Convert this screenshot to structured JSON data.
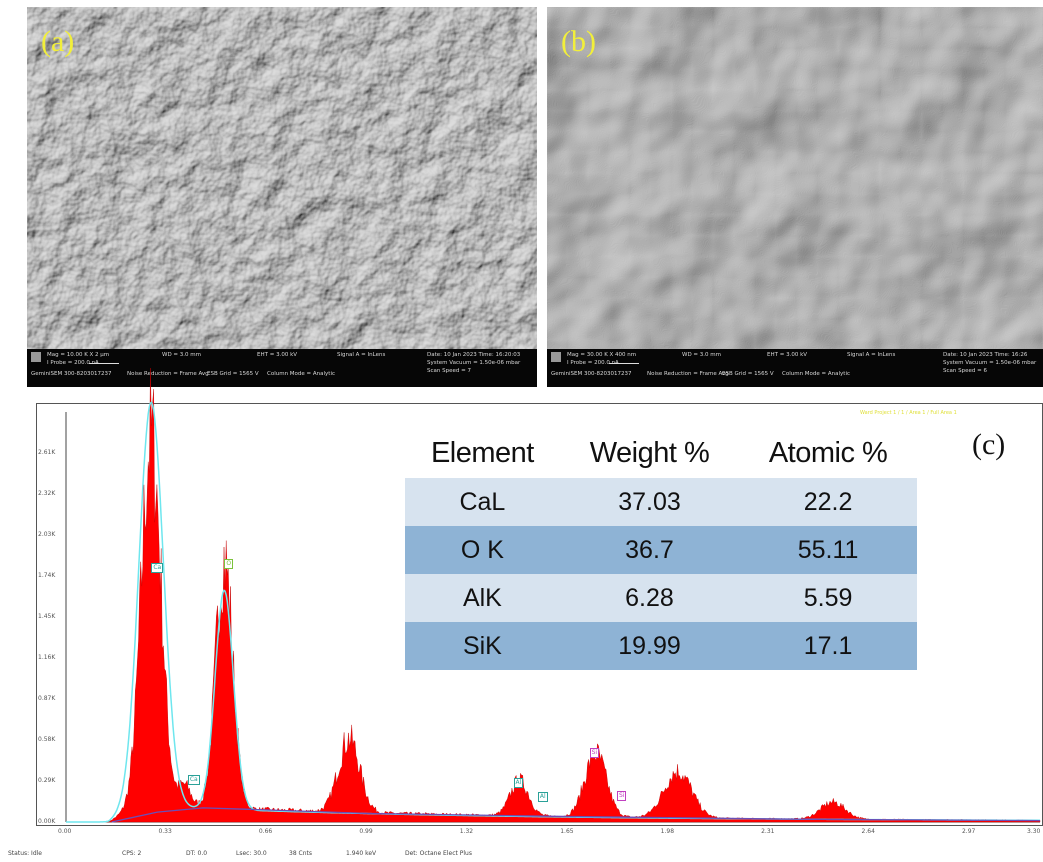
{
  "panel_a": {
    "label": "(a)",
    "info": {
      "col1_row1": "Mag = 10.00 K X",
      "col1_row2": "I Probe = 200.0 nA",
      "col1_row3": "GeminiSEM 300-8203017237",
      "scale": "2 µm",
      "col2_row1": "WD = 3.0 mm",
      "col2_row3": "Noise Reduction = Frame Avg",
      "col3_row1": "EHT = 3.00 kV",
      "col3_row3": "ESB Grid = 1565 V",
      "col4_row1": "Signal A = InLens",
      "col4_row3": "Column Mode = Analytic",
      "col5_row1": "Date: 10 Jan 2023  Time: 16:20:03",
      "col5_row2": "System Vacuum = 1.50e-06 mbar",
      "col5_row3": "Scan Speed = 7"
    }
  },
  "panel_b": {
    "label": "(b)",
    "info": {
      "col1_row1": "Mag = 30.00 K X",
      "col1_row2": "I Probe = 200.0 nA",
      "col1_row3": "GeminiSEM 300-8203017237",
      "scale": "400 nm",
      "col2_row1": "WD = 3.0 mm",
      "col2_row3": "Noise Reduction = Frame Avg",
      "col3_row1": "EHT = 3.00 kV",
      "col3_row3": "ESB Grid = 1565 V",
      "col4_row1": "Signal A = InLens",
      "col4_row3": "Column Mode = Analytic",
      "col5_row1": "Date: 10 Jan 2023  Time: 16:26",
      "col5_row2": "System Vacuum = 1.50e-06 mbar",
      "col5_row3": "Scan Speed = 6"
    }
  },
  "panel_c": {
    "label": "(c)",
    "legend": "Ward Project 1 / 1 / Area 1 / Full Area 1",
    "table": {
      "headers": [
        "Element",
        "Weight %",
        "Atomic %"
      ],
      "rows": [
        [
          "CaL",
          "37.03",
          "22.2"
        ],
        [
          "O K",
          "36.7",
          "55.11"
        ],
        [
          "AlK",
          "6.28",
          "5.59"
        ],
        [
          "SiK",
          "19.99",
          "17.1"
        ]
      ]
    },
    "status": {
      "state": "Status: Idle",
      "cps": "CPS: 2",
      "dt": "DT: 0.0",
      "lsec": "Lsec: 30.0",
      "cnts": "38 Cnts",
      "kev": "1.940 keV",
      "det": "Det: Octane Elect Plus"
    }
  },
  "chart_data": {
    "type": "area",
    "title": "",
    "xlabel": "",
    "ylabel": "",
    "xlim": [
      0,
      3.2
    ],
    "ylim": [
      0,
      2.9
    ],
    "x_ticks": [
      "0.00",
      "0.33",
      "0.66",
      "0.99",
      "1.32",
      "1.65",
      "1.98",
      "2.31",
      "2.64",
      "2.97",
      "3.30"
    ],
    "y_ticks": [
      "0.00K",
      "0.29K",
      "0.58K",
      "0.87K",
      "1.16K",
      "1.45K",
      "1.74K",
      "2.03K",
      "2.32K",
      "2.61K"
    ],
    "series": [
      {
        "type": "area",
        "color": "#ff0000",
        "peaks": [
          {
            "x": 0.28,
            "height": 2.62,
            "width": 0.032
          },
          {
            "x": 0.39,
            "height": 0.15,
            "width": 0.02
          },
          {
            "x": 0.52,
            "height": 1.76,
            "width": 0.028
          },
          {
            "x": 0.93,
            "height": 0.52,
            "width": 0.035
          },
          {
            "x": 1.49,
            "height": 0.25,
            "width": 0.03
          },
          {
            "x": 1.74,
            "height": 0.45,
            "width": 0.035
          },
          {
            "x": 2.01,
            "height": 0.33,
            "width": 0.045
          },
          {
            "x": 2.52,
            "height": 0.12,
            "width": 0.04
          }
        ]
      },
      {
        "type": "line",
        "color": "#6ee6ee",
        "peaks": [
          {
            "x": 0.28,
            "height": 2.86,
            "width": 0.04
          },
          {
            "x": 0.52,
            "height": 1.55,
            "width": 0.03
          }
        ]
      },
      {
        "type": "line",
        "color": "#6a4fb8",
        "description_points": [
          [
            0.15,
            0.0
          ],
          [
            0.3,
            0.07
          ],
          [
            0.45,
            0.1
          ],
          [
            0.6,
            0.09
          ],
          [
            1.0,
            0.06
          ],
          [
            1.6,
            0.04
          ],
          [
            2.4,
            0.02
          ],
          [
            3.2,
            0.01
          ]
        ]
      }
    ],
    "peak_labels": [
      {
        "text": "Ca",
        "x": 0.3,
        "y": 1.79,
        "color": "#2aa198"
      },
      {
        "text": "O",
        "x": 0.54,
        "y": 1.82,
        "color": "#7cc23b"
      },
      {
        "text": "Ca",
        "x": 0.42,
        "y": 0.29,
        "color": "#2aa198"
      },
      {
        "text": "Al",
        "x": 1.49,
        "y": 0.27,
        "color": "#2aa198"
      },
      {
        "text": "Al",
        "x": 1.57,
        "y": 0.17,
        "color": "#2aa198"
      },
      {
        "text": "Si",
        "x": 1.74,
        "y": 0.48,
        "color": "#c040c0"
      },
      {
        "text": "Si",
        "x": 1.83,
        "y": 0.18,
        "color": "#c040c0"
      }
    ]
  }
}
